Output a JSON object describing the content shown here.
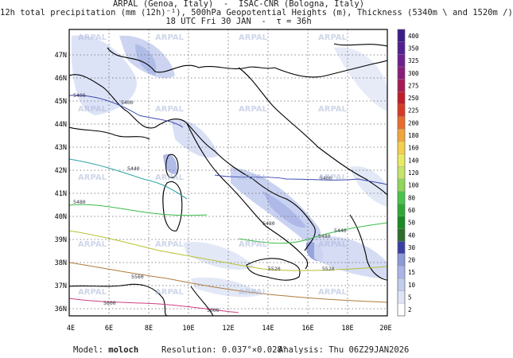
{
  "title": {
    "line1": "ARPAL (Genoa, Italy)  -  ISAC-CNR (Bologna, Italy)",
    "line2": "12h total precipitation (mm (12h)⁻¹), 500hPa Geopotential Heights (m), Thickness (5340m \\ and 1520m /)",
    "line3": "18 UTC Fri 30 JAN  -  τ = 36h"
  },
  "map": {
    "lon_labels": [
      "4E",
      "6E",
      "8E",
      "10E",
      "12E",
      "14E",
      "16E",
      "18E",
      "20E"
    ],
    "lat_labels": [
      "36N",
      "37N",
      "38N",
      "39N",
      "40N",
      "41N",
      "42N",
      "43N",
      "44N",
      "45N",
      "46N",
      "47N"
    ],
    "lon_range": [
      4,
      20
    ],
    "lat_range": [
      35.5,
      48
    ],
    "watermark": "ARPAL",
    "contour_labels": [
      "5400",
      "5400",
      "5400",
      "5440",
      "5440",
      "5480",
      "5480",
      "5480",
      "5520",
      "5520",
      "5560",
      "5600",
      "5600"
    ],
    "grid": "dotted"
  },
  "colorbar": {
    "levels": [
      "2",
      "5",
      "10",
      "15",
      "20",
      "30",
      "40",
      "50",
      "60",
      "80",
      "100",
      "120",
      "140",
      "160",
      "180",
      "200",
      "225",
      "250",
      "275",
      "300",
      "325",
      "350",
      "400"
    ],
    "colors": [
      "#ffffff",
      "#dfe5f5",
      "#c3cdef",
      "#a9b5e6",
      "#8d9ad8",
      "#3a3fa6",
      "#2c6e2a",
      "#1a8a22",
      "#2fa935",
      "#49c44a",
      "#8fd65c",
      "#c6e46a",
      "#e8ea62",
      "#f5d04a",
      "#f2a53c",
      "#ea6b2c",
      "#d93a24",
      "#c21c2a",
      "#a81a55",
      "#8a1c7a",
      "#6f1f8e",
      "#531f93",
      "#3b1d8a"
    ]
  },
  "footer": {
    "model_label": "Model:",
    "model_value": "moloch",
    "resolution": "Resolution: 0.037°×0.028°",
    "analysis": "Analysis: Thu 06Z29JAN2026"
  }
}
